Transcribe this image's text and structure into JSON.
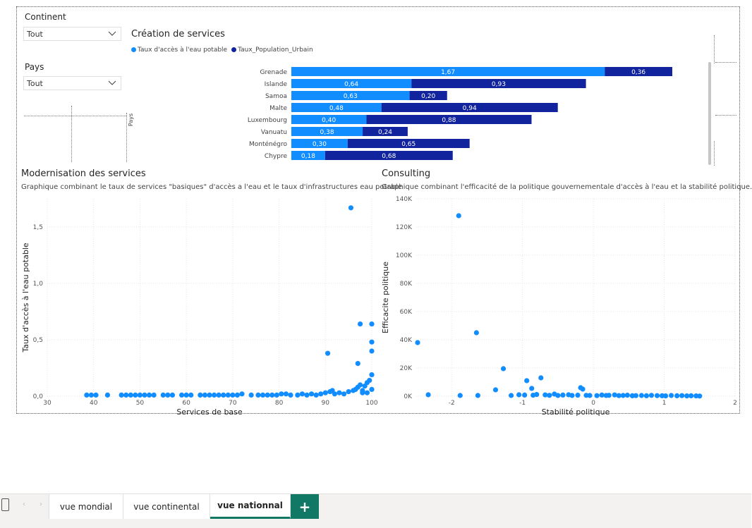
{
  "slicers": [
    {
      "title": "Continent",
      "value": "Tout"
    },
    {
      "title": "Pays",
      "value": "Tout"
    }
  ],
  "bar_chart": {
    "title": "Création de services",
    "axis_label": "Pays",
    "legend": [
      "Taux d'accès à l'eau potable",
      "Taux_Population_Urbain"
    ],
    "colors": [
      "#118dff",
      "#12239e"
    ]
  },
  "scatter_left": {
    "title": "Modernisation des services",
    "subtitle": "Graphique combinant le taux de services \"basiques\" d'accès a l'eau et le taux d'infrastructures eau potable",
    "xlabel": "Services de base",
    "ylabel": "Taux d'accès à l'eau potable",
    "color": "#118dff"
  },
  "scatter_right": {
    "title": "Consulting",
    "subtitle": "Graphique combinant l'efficacité de la politique gouvernementale d'accès à l'eau et la stabilité politique.",
    "xlabel": "Stabilité politique",
    "ylabel": "Efficacite politique",
    "color": "#118dff"
  },
  "tabs": [
    {
      "label": "vue mondial",
      "active": false
    },
    {
      "label": "vue continental",
      "active": false
    },
    {
      "label": "vue nationnal",
      "active": true
    }
  ],
  "chart_data": [
    {
      "type": "bar",
      "orientation": "horizontal-stacked",
      "title": "Création de services",
      "categories": [
        "Grenade",
        "Islande",
        "Samoa",
        "Malte",
        "Luxembourg",
        "Vanuatu",
        "Monténégro",
        "Chypre"
      ],
      "series": [
        {
          "name": "Taux d'accès à l'eau potable",
          "values": [
            1.67,
            0.64,
            0.63,
            0.48,
            0.4,
            0.38,
            0.3,
            0.18
          ],
          "labels": [
            "1,67",
            "0,64",
            "0,63",
            "0,48",
            "0,40",
            "0,38",
            "0,30",
            "0,18"
          ]
        },
        {
          "name": "Taux_Population_Urbain",
          "values": [
            0.36,
            0.93,
            0.2,
            0.94,
            0.88,
            0.24,
            0.65,
            0.68
          ],
          "labels": [
            "0,36",
            "0,93",
            "0,20",
            "0,94",
            "0,88",
            "0,24",
            "0,65",
            "0,68"
          ]
        }
      ],
      "ylabel": "Pays"
    },
    {
      "type": "scatter",
      "title": "Modernisation des services",
      "xlabel": "Services de base",
      "ylabel": "Taux d'accès à l'eau potable",
      "xlim": [
        30,
        100
      ],
      "ylim": [
        0,
        1.75
      ],
      "xticks": [
        "30",
        "40",
        "50",
        "60",
        "70",
        "80",
        "90",
        "100"
      ],
      "yticks": [
        "0,0",
        "0,5",
        "1,0",
        "1,5"
      ],
      "ytick_values": [
        0,
        0.5,
        1.0,
        1.5
      ],
      "points": [
        [
          38.5,
          0.01
        ],
        [
          39.5,
          0.01
        ],
        [
          40.5,
          0.01
        ],
        [
          43,
          0.01
        ],
        [
          46,
          0.01
        ],
        [
          47,
          0.01
        ],
        [
          48,
          0.01
        ],
        [
          49,
          0.01
        ],
        [
          50,
          0.01
        ],
        [
          51,
          0.01
        ],
        [
          52,
          0.01
        ],
        [
          53,
          0.01
        ],
        [
          55,
          0.01
        ],
        [
          56,
          0.01
        ],
        [
          57,
          0.01
        ],
        [
          59,
          0.01
        ],
        [
          60,
          0.01
        ],
        [
          61,
          0.01
        ],
        [
          63,
          0.01
        ],
        [
          64,
          0.01
        ],
        [
          65,
          0.01
        ],
        [
          66,
          0.01
        ],
        [
          67,
          0.01
        ],
        [
          68,
          0.01
        ],
        [
          69,
          0.01
        ],
        [
          70,
          0.01
        ],
        [
          71,
          0.01
        ],
        [
          72,
          0.02
        ],
        [
          74,
          0.01
        ],
        [
          75.5,
          0.01
        ],
        [
          76.5,
          0.01
        ],
        [
          77.5,
          0.01
        ],
        [
          78.5,
          0.01
        ],
        [
          79.5,
          0.01
        ],
        [
          80.5,
          0.02
        ],
        [
          81.5,
          0.02
        ],
        [
          82.5,
          0.01
        ],
        [
          84,
          0.01
        ],
        [
          85,
          0.02
        ],
        [
          86,
          0.01
        ],
        [
          87,
          0.02
        ],
        [
          88,
          0.01
        ],
        [
          89,
          0.02
        ],
        [
          90,
          0.03
        ],
        [
          91,
          0.04
        ],
        [
          91.5,
          0.05
        ],
        [
          92,
          0.02
        ],
        [
          93,
          0.03
        ],
        [
          94,
          0.02
        ],
        [
          95,
          0.04
        ],
        [
          96,
          0.05
        ],
        [
          96.5,
          0.06
        ],
        [
          97,
          0.08
        ],
        [
          97.5,
          0.1
        ],
        [
          98,
          0.05
        ],
        [
          98.5,
          0.09
        ],
        [
          99,
          0.12
        ],
        [
          99.5,
          0.14
        ],
        [
          100,
          0.19
        ],
        [
          99,
          0.03
        ],
        [
          98,
          0.03
        ],
        [
          100,
          0.06
        ],
        [
          90.5,
          0.38
        ],
        [
          97,
          0.29
        ],
        [
          100,
          0.4
        ],
        [
          100,
          0.48
        ],
        [
          97.5,
          0.64
        ],
        [
          100,
          0.64
        ],
        [
          95.5,
          1.67
        ]
      ]
    },
    {
      "type": "scatter",
      "title": "Consulting",
      "xlabel": "Stabilité politique",
      "ylabel": "Efficacite politique",
      "xlim": [
        -2.5,
        2
      ],
      "ylim": [
        0,
        140000
      ],
      "xticks": [
        "-2",
        "-1",
        "0",
        "1",
        "2"
      ],
      "xtick_values": [
        -2,
        -1,
        0,
        1,
        2
      ],
      "yticks": [
        "0K",
        "20K",
        "40K",
        "60K",
        "80K",
        "100K",
        "120K",
        "140K"
      ],
      "ytick_values": [
        0,
        20000,
        40000,
        60000,
        80000,
        100000,
        120000,
        140000
      ],
      "points": [
        [
          -2.48,
          38000
        ],
        [
          -2.33,
          1000
        ],
        [
          -1.9,
          128000
        ],
        [
          -1.88,
          500
        ],
        [
          -1.65,
          45000
        ],
        [
          -1.63,
          500
        ],
        [
          -1.38,
          4500
        ],
        [
          -1.27,
          19500
        ],
        [
          -1.16,
          500
        ],
        [
          -0.94,
          11000
        ],
        [
          -0.87,
          5500
        ],
        [
          -0.74,
          13000
        ],
        [
          -0.55,
          1500
        ],
        [
          -0.5,
          500
        ],
        [
          -0.18,
          6000
        ],
        [
          -0.15,
          5000
        ],
        [
          -1.05,
          1000
        ],
        [
          -0.97,
          800
        ],
        [
          -0.85,
          700
        ],
        [
          -0.8,
          1200
        ],
        [
          -0.68,
          900
        ],
        [
          -0.62,
          600
        ],
        [
          -0.43,
          800
        ],
        [
          -0.35,
          1000
        ],
        [
          -0.3,
          500
        ],
        [
          -0.22,
          700
        ],
        [
          -0.1,
          600
        ],
        [
          -0.05,
          500
        ],
        [
          0.05,
          400
        ],
        [
          0.12,
          800
        ],
        [
          0.18,
          500
        ],
        [
          0.22,
          600
        ],
        [
          0.3,
          900
        ],
        [
          0.36,
          400
        ],
        [
          0.42,
          500
        ],
        [
          0.48,
          700
        ],
        [
          0.55,
          300
        ],
        [
          0.6,
          400
        ],
        [
          0.68,
          500
        ],
        [
          0.75,
          300
        ],
        [
          0.82,
          600
        ],
        [
          0.9,
          400
        ],
        [
          0.97,
          300
        ],
        [
          1.02,
          200
        ],
        [
          1.1,
          500
        ],
        [
          1.18,
          300
        ],
        [
          1.25,
          400
        ],
        [
          1.32,
          200
        ],
        [
          1.38,
          300
        ],
        [
          1.45,
          200
        ],
        [
          1.5,
          100
        ]
      ]
    }
  ]
}
